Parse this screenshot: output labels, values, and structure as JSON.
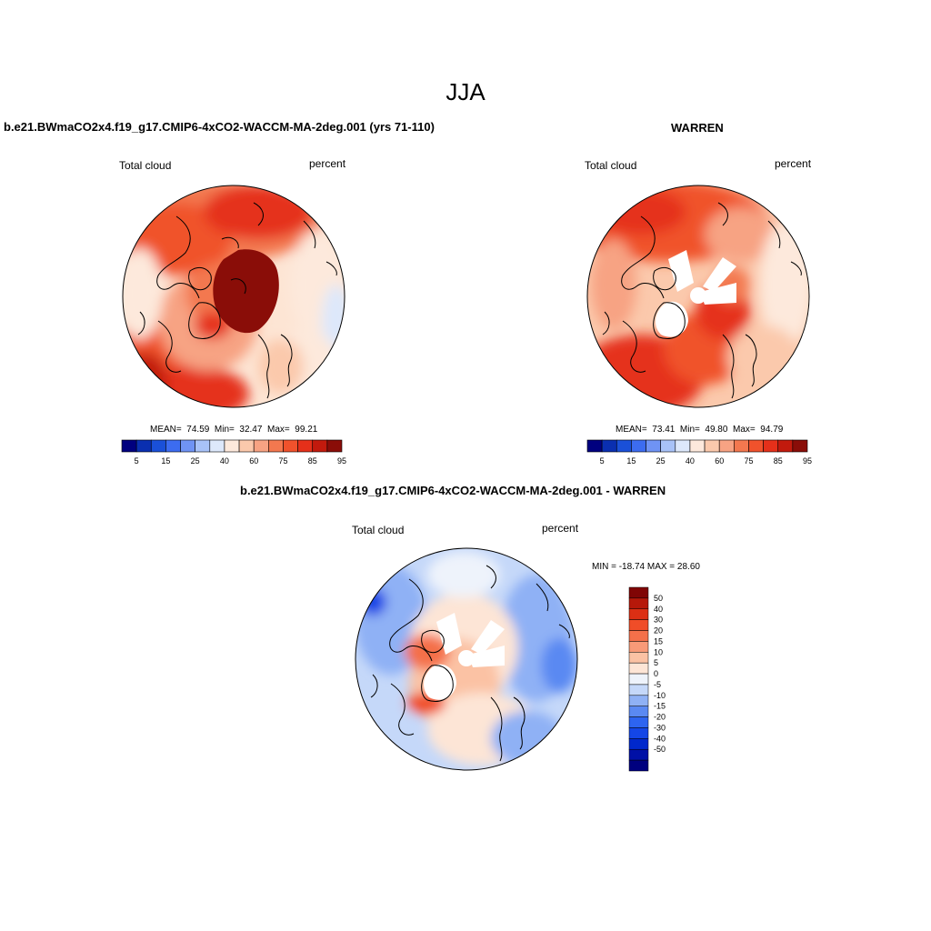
{
  "season_title": "JJA",
  "panels": {
    "model": {
      "title": "b.e21.BWmaCO2x4.f19_g17.CMIP6-4xCO2-WACCM-MA-2deg.001 (yrs 71-110)",
      "variable": "Total cloud",
      "units": "percent",
      "stats": {
        "mean_label": "MEAN=",
        "mean": "74.59",
        "min_label": "Min=",
        "min": "32.47",
        "max_label": "Max=",
        "max": "99.21"
      }
    },
    "obs": {
      "title": "WARREN",
      "variable": "Total cloud",
      "units": "percent",
      "stats": {
        "mean_label": "MEAN=",
        "mean": "73.41",
        "min_label": "Min=",
        "min": "49.80",
        "max_label": "Max=",
        "max": "94.79"
      }
    },
    "diff": {
      "title": "b.e21.BWmaCO2x4.f19_g17.CMIP6-4xCO2-WACCM-MA-2deg.001 - WARREN",
      "variable": "Total cloud",
      "units": "percent",
      "minmax": "MIN = -18.74 MAX =  28.60"
    }
  },
  "colorbars": {
    "absolute": {
      "colors": [
        "#00007f",
        "#0a2fb0",
        "#1a50d8",
        "#3c6cf0",
        "#6f93f4",
        "#a8c2f8",
        "#dde8fb",
        "#fde9dc",
        "#fbc9ac",
        "#f7a383",
        "#f3784f",
        "#f0522c",
        "#e5301a",
        "#c21a0d",
        "#8a0d08"
      ],
      "tick_labels": [
        "5",
        "15",
        "25",
        "40",
        "60",
        "75",
        "85",
        "95"
      ]
    },
    "difference": {
      "colors": [
        "#00007f",
        "#0010a6",
        "#0028cc",
        "#1446e6",
        "#2d64f0",
        "#5a89f2",
        "#8fb1f5",
        "#c5d8f9",
        "#eef3fb",
        "#fde5d6",
        "#fbc2a4",
        "#f89a78",
        "#f4704a",
        "#f04d28",
        "#dc2f14",
        "#b6180a",
        "#800505"
      ],
      "tick_labels": [
        "50",
        "40",
        "30",
        "20",
        "15",
        "10",
        "5",
        "0",
        "-5",
        "-10",
        "-15",
        "-20",
        "-30",
        "-40",
        "-50"
      ]
    }
  }
}
